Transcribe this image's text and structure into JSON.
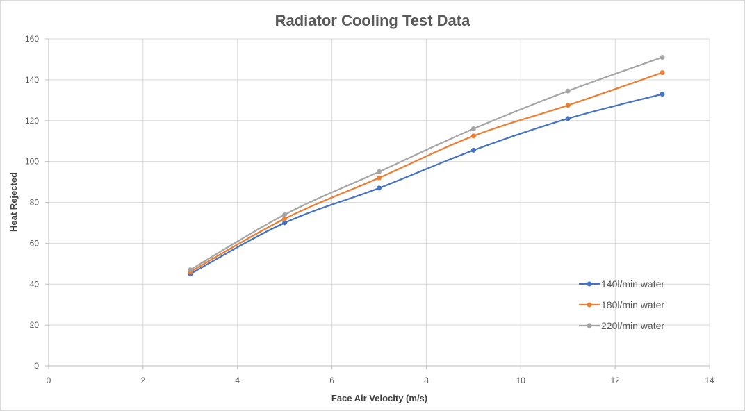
{
  "chart_data": {
    "type": "line",
    "title": "Radiator Cooling Test Data",
    "xlabel": "Face Air Velocity (m/s)",
    "ylabel": "Heat Rejected",
    "xlim": [
      0,
      14
    ],
    "ylim": [
      0,
      160
    ],
    "xticks": [
      0,
      2,
      4,
      6,
      8,
      10,
      12,
      14
    ],
    "yticks": [
      0,
      20,
      40,
      60,
      80,
      100,
      120,
      140,
      160
    ],
    "grid": true,
    "smooth": true,
    "legend_position": "bottom-right",
    "series": [
      {
        "name": "140l/min water",
        "color": "#4472c4",
        "x": [
          3,
          5,
          7,
          9,
          11,
          13
        ],
        "y": [
          45,
          70,
          87,
          105.5,
          121,
          133
        ]
      },
      {
        "name": "180l/min water",
        "color": "#ed7d31",
        "x": [
          3,
          5,
          7,
          9,
          11,
          13
        ],
        "y": [
          46,
          72,
          92,
          112.5,
          127.5,
          143.5
        ]
      },
      {
        "name": "220l/min water",
        "color": "#a5a5a5",
        "x": [
          3,
          5,
          7,
          9,
          11,
          13
        ],
        "y": [
          47,
          74,
          95,
          116,
          134.5,
          151
        ]
      }
    ]
  }
}
